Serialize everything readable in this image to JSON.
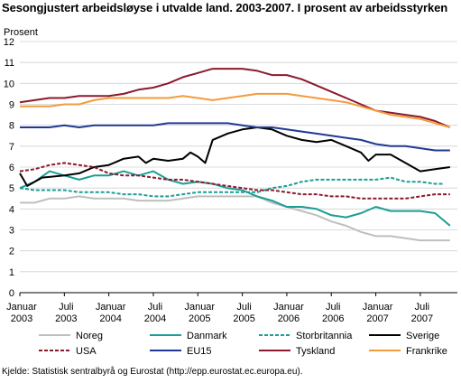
{
  "chart_data": {
    "type": "line",
    "title": "Sesongjustert arbeidsløyse i utvalde land. 2003-2007. I prosent av arbeidsstyrken",
    "ylabel": "Prosent",
    "xlabel": "",
    "ylim": [
      0,
      12
    ],
    "y_ticks": [
      "0",
      "1",
      "2",
      "3",
      "4",
      "5",
      "6",
      "7",
      "8",
      "9",
      "10",
      "11",
      "12"
    ],
    "x_ticks": [
      {
        "month": 0,
        "line1": "Januar",
        "line2": "2003"
      },
      {
        "month": 6,
        "line1": "Juli",
        "line2": "2003"
      },
      {
        "month": 12,
        "line1": "Januar",
        "line2": "2004"
      },
      {
        "month": 18,
        "line1": "Juli",
        "line2": "2004"
      },
      {
        "month": 24,
        "line1": "Januar",
        "line2": "2005"
      },
      {
        "month": 30,
        "line1": "Juli",
        "line2": "2005"
      },
      {
        "month": 36,
        "line1": "Januar",
        "line2": "2006"
      },
      {
        "month": 42,
        "line1": "Juli",
        "line2": "2006"
      },
      {
        "month": 48,
        "line1": "Januar",
        "line2": "2007"
      },
      {
        "month": 54,
        "line1": "Juli",
        "line2": "2007"
      }
    ],
    "grid": true,
    "legend_position": "bottom",
    "series": [
      {
        "name": "Noreg",
        "color": "#bfbfbf",
        "dash": "solid",
        "points": [
          [
            0,
            4.3
          ],
          [
            2,
            4.3
          ],
          [
            4,
            4.5
          ],
          [
            6,
            4.5
          ],
          [
            8,
            4.6
          ],
          [
            10,
            4.5
          ],
          [
            12,
            4.5
          ],
          [
            14,
            4.5
          ],
          [
            16,
            4.4
          ],
          [
            18,
            4.4
          ],
          [
            20,
            4.4
          ],
          [
            22,
            4.5
          ],
          [
            24,
            4.6
          ],
          [
            26,
            4.6
          ],
          [
            28,
            4.6
          ],
          [
            30,
            4.6
          ],
          [
            32,
            4.6
          ],
          [
            34,
            4.3
          ],
          [
            36,
            4.1
          ],
          [
            38,
            3.9
          ],
          [
            40,
            3.7
          ],
          [
            42,
            3.4
          ],
          [
            44,
            3.2
          ],
          [
            46,
            2.9
          ],
          [
            48,
            2.7
          ],
          [
            50,
            2.7
          ],
          [
            52,
            2.6
          ],
          [
            54,
            2.5
          ],
          [
            56,
            2.5
          ],
          [
            58,
            2.5
          ]
        ]
      },
      {
        "name": "Danmark",
        "color": "#1a9e96",
        "dash": "solid",
        "points": [
          [
            0,
            5.0
          ],
          [
            2,
            5.3
          ],
          [
            4,
            5.8
          ],
          [
            6,
            5.6
          ],
          [
            8,
            5.4
          ],
          [
            10,
            5.6
          ],
          [
            12,
            5.6
          ],
          [
            14,
            5.8
          ],
          [
            16,
            5.6
          ],
          [
            18,
            5.8
          ],
          [
            20,
            5.4
          ],
          [
            22,
            5.2
          ],
          [
            24,
            5.3
          ],
          [
            26,
            5.2
          ],
          [
            28,
            5.0
          ],
          [
            30,
            4.9
          ],
          [
            32,
            4.6
          ],
          [
            34,
            4.4
          ],
          [
            36,
            4.1
          ],
          [
            38,
            4.1
          ],
          [
            40,
            4.0
          ],
          [
            42,
            3.7
          ],
          [
            44,
            3.6
          ],
          [
            46,
            3.8
          ],
          [
            48,
            4.1
          ],
          [
            50,
            3.9
          ],
          [
            52,
            3.9
          ],
          [
            54,
            3.9
          ],
          [
            56,
            3.8
          ],
          [
            58,
            3.2
          ]
        ]
      },
      {
        "name": "Storbritannia",
        "color": "#1a9e96",
        "dash": "dashed",
        "points": [
          [
            0,
            5.0
          ],
          [
            2,
            4.9
          ],
          [
            4,
            4.9
          ],
          [
            6,
            4.9
          ],
          [
            8,
            4.8
          ],
          [
            10,
            4.8
          ],
          [
            12,
            4.8
          ],
          [
            14,
            4.7
          ],
          [
            16,
            4.7
          ],
          [
            18,
            4.6
          ],
          [
            20,
            4.6
          ],
          [
            22,
            4.7
          ],
          [
            24,
            4.8
          ],
          [
            26,
            4.8
          ],
          [
            28,
            4.8
          ],
          [
            30,
            4.8
          ],
          [
            32,
            4.8
          ],
          [
            34,
            5.0
          ],
          [
            36,
            5.1
          ],
          [
            38,
            5.3
          ],
          [
            40,
            5.4
          ],
          [
            42,
            5.4
          ],
          [
            44,
            5.4
          ],
          [
            46,
            5.4
          ],
          [
            48,
            5.4
          ],
          [
            50,
            5.5
          ],
          [
            52,
            5.3
          ],
          [
            54,
            5.3
          ],
          [
            56,
            5.2
          ],
          [
            57,
            5.2
          ]
        ]
      },
      {
        "name": "Sverige",
        "color": "#000000",
        "dash": "solid",
        "points": [
          [
            0,
            5.7
          ],
          [
            1,
            5.1
          ],
          [
            3,
            5.5
          ],
          [
            6,
            5.6
          ],
          [
            8,
            5.7
          ],
          [
            10,
            6.0
          ],
          [
            12,
            6.1
          ],
          [
            14,
            6.4
          ],
          [
            16,
            6.5
          ],
          [
            17,
            6.2
          ],
          [
            18,
            6.4
          ],
          [
            20,
            6.3
          ],
          [
            22,
            6.4
          ],
          [
            23,
            6.7
          ],
          [
            24,
            6.5
          ],
          [
            25,
            6.2
          ],
          [
            26,
            7.3
          ],
          [
            28,
            7.6
          ],
          [
            30,
            7.8
          ],
          [
            32,
            7.9
          ],
          [
            34,
            7.8
          ],
          [
            36,
            7.5
          ],
          [
            38,
            7.3
          ],
          [
            40,
            7.2
          ],
          [
            42,
            7.3
          ],
          [
            44,
            7.0
          ],
          [
            46,
            6.7
          ],
          [
            47,
            6.3
          ],
          [
            48,
            6.6
          ],
          [
            50,
            6.6
          ],
          [
            52,
            6.2
          ],
          [
            54,
            5.8
          ],
          [
            56,
            5.9
          ],
          [
            58,
            6.0
          ]
        ]
      },
      {
        "name": "USA",
        "color": "#8b1a2b",
        "dash": "dashed",
        "points": [
          [
            0,
            5.8
          ],
          [
            2,
            5.9
          ],
          [
            4,
            6.1
          ],
          [
            6,
            6.2
          ],
          [
            8,
            6.1
          ],
          [
            10,
            6.0
          ],
          [
            12,
            5.7
          ],
          [
            14,
            5.6
          ],
          [
            16,
            5.6
          ],
          [
            18,
            5.5
          ],
          [
            20,
            5.4
          ],
          [
            22,
            5.4
          ],
          [
            24,
            5.3
          ],
          [
            26,
            5.2
          ],
          [
            28,
            5.1
          ],
          [
            30,
            5.0
          ],
          [
            32,
            4.9
          ],
          [
            34,
            4.9
          ],
          [
            36,
            4.8
          ],
          [
            38,
            4.7
          ],
          [
            40,
            4.7
          ],
          [
            42,
            4.6
          ],
          [
            44,
            4.6
          ],
          [
            46,
            4.5
          ],
          [
            48,
            4.5
          ],
          [
            50,
            4.5
          ],
          [
            52,
            4.5
          ],
          [
            54,
            4.6
          ],
          [
            56,
            4.7
          ],
          [
            58,
            4.7
          ]
        ]
      },
      {
        "name": "EU15",
        "color": "#1f3a93",
        "dash": "solid",
        "points": [
          [
            0,
            7.9
          ],
          [
            2,
            7.9
          ],
          [
            4,
            7.9
          ],
          [
            6,
            8.0
          ],
          [
            8,
            7.9
          ],
          [
            10,
            8.0
          ],
          [
            12,
            8.0
          ],
          [
            14,
            8.0
          ],
          [
            16,
            8.0
          ],
          [
            18,
            8.0
          ],
          [
            20,
            8.1
          ],
          [
            22,
            8.1
          ],
          [
            24,
            8.1
          ],
          [
            26,
            8.1
          ],
          [
            28,
            8.1
          ],
          [
            30,
            8.0
          ],
          [
            32,
            7.9
          ],
          [
            34,
            7.9
          ],
          [
            36,
            7.8
          ],
          [
            38,
            7.7
          ],
          [
            40,
            7.6
          ],
          [
            42,
            7.5
          ],
          [
            44,
            7.4
          ],
          [
            46,
            7.3
          ],
          [
            48,
            7.1
          ],
          [
            50,
            7.0
          ],
          [
            52,
            7.0
          ],
          [
            54,
            6.9
          ],
          [
            56,
            6.8
          ],
          [
            58,
            6.8
          ]
        ]
      },
      {
        "name": "Tyskland",
        "color": "#8b1a2b",
        "dash": "solid",
        "points": [
          [
            0,
            9.1
          ],
          [
            2,
            9.2
          ],
          [
            4,
            9.3
          ],
          [
            6,
            9.3
          ],
          [
            8,
            9.4
          ],
          [
            10,
            9.4
          ],
          [
            12,
            9.4
          ],
          [
            14,
            9.5
          ],
          [
            16,
            9.7
          ],
          [
            18,
            9.8
          ],
          [
            20,
            10.0
          ],
          [
            22,
            10.3
          ],
          [
            24,
            10.5
          ],
          [
            26,
            10.7
          ],
          [
            28,
            10.7
          ],
          [
            30,
            10.7
          ],
          [
            32,
            10.6
          ],
          [
            34,
            10.4
          ],
          [
            36,
            10.4
          ],
          [
            38,
            10.2
          ],
          [
            40,
            9.9
          ],
          [
            42,
            9.6
          ],
          [
            44,
            9.3
          ],
          [
            46,
            9.0
          ],
          [
            48,
            8.7
          ],
          [
            50,
            8.6
          ],
          [
            52,
            8.5
          ],
          [
            54,
            8.4
          ],
          [
            56,
            8.2
          ],
          [
            58,
            7.9
          ]
        ]
      },
      {
        "name": "Frankrike",
        "color": "#f39c3c",
        "dash": "solid",
        "points": [
          [
            0,
            8.9
          ],
          [
            2,
            8.9
          ],
          [
            4,
            8.9
          ],
          [
            6,
            9.0
          ],
          [
            8,
            9.0
          ],
          [
            10,
            9.2
          ],
          [
            12,
            9.3
          ],
          [
            14,
            9.3
          ],
          [
            16,
            9.3
          ],
          [
            18,
            9.3
          ],
          [
            20,
            9.3
          ],
          [
            22,
            9.4
          ],
          [
            24,
            9.3
          ],
          [
            26,
            9.2
          ],
          [
            28,
            9.3
          ],
          [
            30,
            9.4
          ],
          [
            32,
            9.5
          ],
          [
            34,
            9.5
          ],
          [
            36,
            9.5
          ],
          [
            38,
            9.4
          ],
          [
            40,
            9.3
          ],
          [
            42,
            9.2
          ],
          [
            44,
            9.1
          ],
          [
            46,
            8.9
          ],
          [
            48,
            8.7
          ],
          [
            50,
            8.5
          ],
          [
            52,
            8.4
          ],
          [
            54,
            8.3
          ],
          [
            56,
            8.1
          ],
          [
            58,
            7.9
          ]
        ]
      }
    ]
  },
  "source": "Kjelde: Statistisk sentralbyrå og Eurostat (http://epp.eurostat.ec.europa.eu)."
}
